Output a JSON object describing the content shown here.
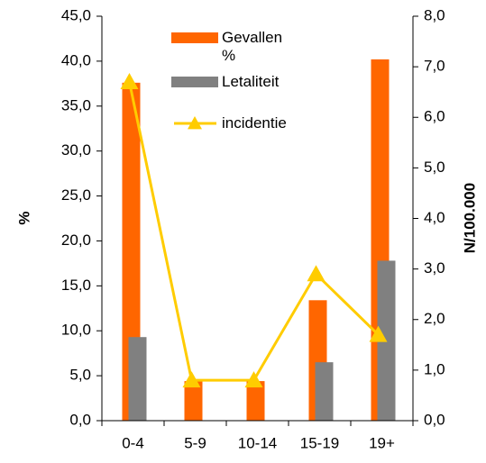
{
  "chart_data": {
    "type": "bar_line",
    "categories": [
      "0-4",
      "5-9",
      "10-14",
      "15-19",
      "19+"
    ],
    "series": [
      {
        "name": "Gevallen %",
        "color": "#ff6600",
        "type": "bar",
        "values": [
          37.6,
          4.4,
          4.4,
          13.4,
          40.2
        ]
      },
      {
        "name": "Letaliteit",
        "color": "#808080",
        "type": "bar",
        "values": [
          9.3,
          0,
          0,
          6.5,
          17.8
        ]
      },
      {
        "name": "incidentie",
        "color": "#ffcc00",
        "type": "line",
        "axis": "y2",
        "values": [
          6.7,
          0.8,
          0.8,
          2.9,
          1.7
        ]
      }
    ],
    "ylabel": "%",
    "y2label": "N/100.000",
    "ylim": [
      0,
      45
    ],
    "yticks": [
      {
        "value": 0,
        "label": "0,0"
      },
      {
        "value": 5,
        "label": "5,0"
      },
      {
        "value": 10,
        "label": "10,0"
      },
      {
        "value": 15,
        "label": "15,0"
      },
      {
        "value": 20,
        "label": "20,0"
      },
      {
        "value": 25,
        "label": "25,0"
      },
      {
        "value": 30,
        "label": "30,0"
      },
      {
        "value": 35,
        "label": "35,0"
      },
      {
        "value": 40,
        "label": "40,0"
      },
      {
        "value": 45,
        "label": "45,0"
      }
    ],
    "y2lim": [
      0,
      8
    ],
    "y2ticks": [
      {
        "value": 0,
        "label": "0,0"
      },
      {
        "value": 1,
        "label": "1,0"
      },
      {
        "value": 2,
        "label": "2,0"
      },
      {
        "value": 3,
        "label": "3,0"
      },
      {
        "value": 4,
        "label": "4,0"
      },
      {
        "value": 5,
        "label": "5,0"
      },
      {
        "value": 6,
        "label": "6,0"
      },
      {
        "value": 7,
        "label": "7,0"
      },
      {
        "value": 8,
        "label": "8,0"
      }
    ],
    "grid": false
  }
}
